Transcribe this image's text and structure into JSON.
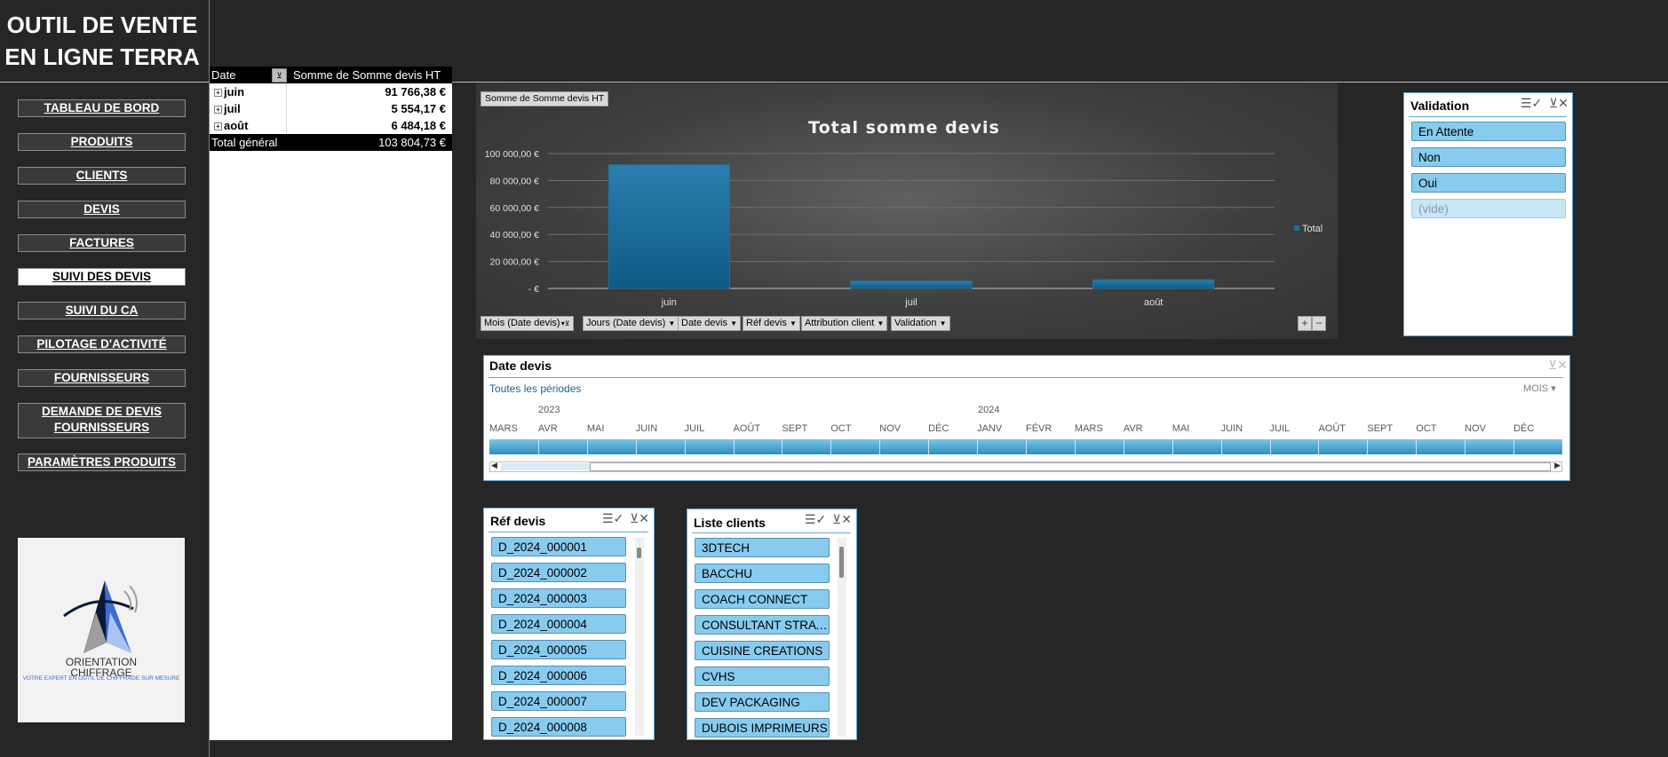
{
  "app": {
    "title_line1": "OUTIL DE VENTE",
    "title_line2": "EN LIGNE TERRA"
  },
  "nav": {
    "items": [
      {
        "label": "TABLEAU DE BORD"
      },
      {
        "label": "PRODUITS"
      },
      {
        "label": "CLIENTS"
      },
      {
        "label": "DEVIS"
      },
      {
        "label": "FACTURES"
      },
      {
        "label": "SUIVI DES DEVIS",
        "active": true
      },
      {
        "label": "SUIVI DU CA"
      },
      {
        "label": "PILOTAGE D'ACTIVITÉ"
      },
      {
        "label": "FOURNISSEURS"
      },
      {
        "label_line1": "DEMANDE DE DEVIS",
        "label_line2": "FOURNISSEURS"
      },
      {
        "label": "PARAMÈTRES PRODUITS"
      }
    ]
  },
  "logo": {
    "name_line1": "ORIENTATION",
    "name_line2": "CHIFFRAGE",
    "tagline": "VOTRE EXPERT EN OUTIL DE CHIFFRAGE SUR MESURE",
    "colors": {
      "dark": "#0b1a3a",
      "blue": "#3b6fd4",
      "light": "#a9c4f2",
      "grey": "#9e9e9e"
    }
  },
  "pivot": {
    "header_date": "Date",
    "header_value": "Somme de Somme devis HT",
    "rows": [
      {
        "label": "juin",
        "value": "91 766,38 €"
      },
      {
        "label": "juil",
        "value": "5 554,17 €"
      },
      {
        "label": "août",
        "value": "6 484,18 €"
      }
    ],
    "total_label": "Total général",
    "total_value": "103 804,73 €"
  },
  "chart_field_button": "Somme  de Somme  devis HT",
  "chart_data": {
    "type": "bar",
    "title": "Total somme devis",
    "categories": [
      "juin",
      "juil",
      "août"
    ],
    "series": [
      {
        "name": "Total",
        "values": [
          91766.38,
          5554.17,
          6484.18
        ]
      }
    ],
    "ylim": [
      0,
      100000
    ],
    "yticks": [
      0,
      20000,
      40000,
      60000,
      80000,
      100000
    ],
    "ytick_labels": [
      "-  €",
      "20 000,00 €",
      "40 000,00 €",
      "60 000,00 €",
      "80 000,00 €",
      "100 000,00 €"
    ],
    "legend_position": "right",
    "grid": true,
    "bar_color": "#1f6f9c"
  },
  "chart_filters": [
    {
      "label": "Mois (Date devis)",
      "filtered": true
    },
    {
      "label": "Jours (Date devis)"
    },
    {
      "label": "Date devis"
    },
    {
      "label": "Réf devis"
    },
    {
      "label": "Attribution client"
    },
    {
      "label": "Validation"
    }
  ],
  "chart_zoom": {
    "plus": "+",
    "minus": "−"
  },
  "validation_slicer": {
    "title": "Validation",
    "items": [
      {
        "label": "En Attente"
      },
      {
        "label": "Non"
      },
      {
        "label": "Oui"
      },
      {
        "label": "(vide)",
        "empty": true
      }
    ]
  },
  "timeline": {
    "title": "Date devis",
    "period_label": "Toutes les périodes",
    "level_label": "MOIS",
    "years": [
      "2023",
      "2024"
    ],
    "months": [
      "MARS",
      "AVR",
      "MAI",
      "JUIN",
      "JUIL",
      "AOÛT",
      "SEPT",
      "OCT",
      "NOV",
      "DÉC",
      "JANV",
      "FÉVR",
      "MARS",
      "AVR",
      "MAI",
      "JUIN",
      "JUIL",
      "AOÛT",
      "SEPT",
      "OCT",
      "NOV",
      "DÉC"
    ]
  },
  "ref_slicer": {
    "title": "Réf devis",
    "items": [
      "D_2024_000001",
      "D_2024_000002",
      "D_2024_000003",
      "D_2024_000004",
      "D_2024_000005",
      "D_2024_000006",
      "D_2024_000007",
      "D_2024_000008"
    ]
  },
  "clients_slicer": {
    "title": "Liste clients",
    "items": [
      "3DTECH",
      "BACCHU",
      "COACH CONNECT",
      "CONSULTANT STRAT...",
      "CUISINE CREATIONS",
      "CVHS",
      "DEV PACKAGING",
      "DUBOIS IMPRIMEURS"
    ]
  }
}
